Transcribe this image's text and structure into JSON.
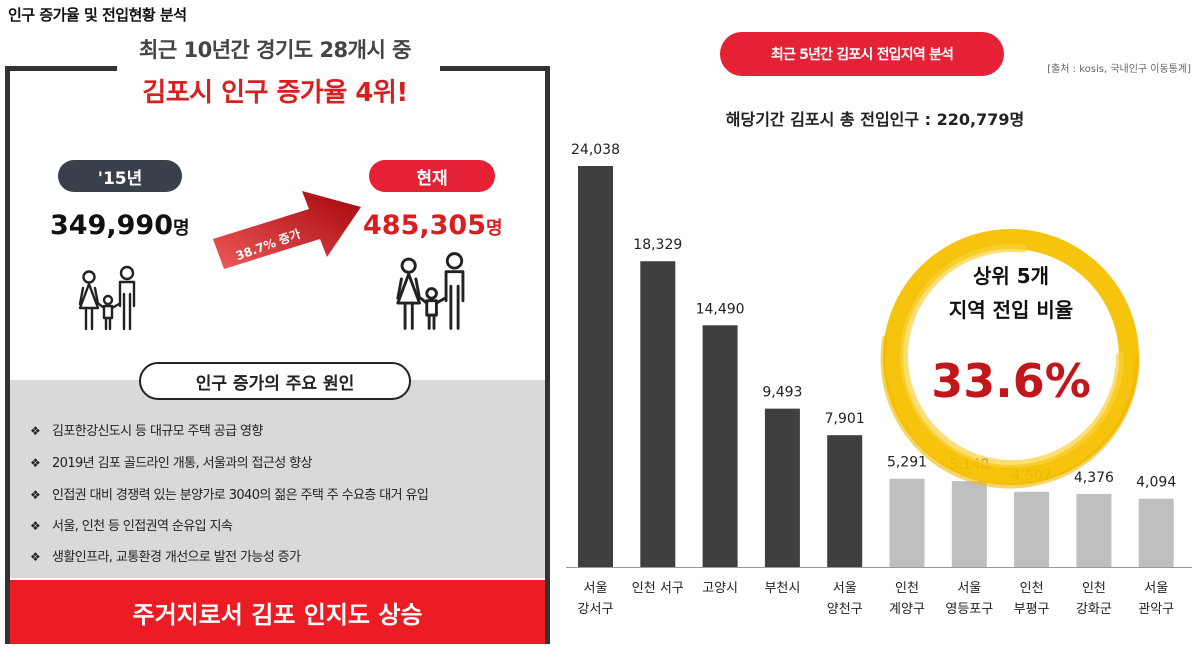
{
  "page_label": "인구 증가율 및 전입현황 분석",
  "left": {
    "subtitle": "최근 10년간 경기도 28개시 중",
    "headline": "김포시 인구 증가율 4위!",
    "past": {
      "label": "'15년",
      "value": "349,990",
      "unit": "명"
    },
    "present": {
      "label": "현재",
      "value": "485,305",
      "unit": "명"
    },
    "growth_label": "38.7% 증가",
    "reasons_title": "인구 증가의 주요 원인",
    "bullet": "❖",
    "reasons": [
      "김포한강신도시 등 대규모 주택 공급 영향",
      "2019년 김포 골드라인 개통, 서울과의 접근성 향상",
      "인접권 대비 경쟁력 있는 분양가로 3040의 젊은 주택 주 수요층 대거 유입",
      "서울, 인천 등 인접권역 순유입 지속",
      "생활인프라, 교통환경 개선으로 발전 가능성 증가"
    ],
    "banner": "주거지로서 김포 인지도 상승"
  },
  "right": {
    "title": "최근 5년간 김포시 전입지역 분석",
    "source": "[출처 : kosis, 국내인구 이동통계]",
    "total": "해당기간 김포시 총 전입인구 : 220,779명",
    "ring_line1": "상위 5개",
    "ring_line2": "지역 전입 비율",
    "ring_value": "33.6%"
  },
  "colors": {
    "accent_red": "#e52136",
    "headline_red": "#d81e1e",
    "dark": "#3a404a",
    "bar_top": "#3f3f3f",
    "bar_rest": "#bfbfbf",
    "ring": "#f5c000"
  },
  "chart_data": {
    "type": "bar",
    "title": "최근 5년간 김포시 전입지역 분석",
    "categories": [
      [
        "서울",
        "강서구"
      ],
      [
        "인천 서구"
      ],
      [
        "고양시"
      ],
      [
        "부천시"
      ],
      [
        "서울",
        "양천구"
      ],
      [
        "인천",
        "계양구"
      ],
      [
        "서울",
        "영등포구"
      ],
      [
        "인천",
        "부평구"
      ],
      [
        "인천",
        "강화군"
      ],
      [
        "서울",
        "관악구"
      ]
    ],
    "values": [
      24038,
      18329,
      14490,
      9493,
      7901,
      5291,
      5148,
      4507,
      4376,
      4094
    ],
    "value_labels": [
      "24,038",
      "18,329",
      "14,490",
      "9,493",
      "7,901",
      "5,291",
      "5,148",
      "4,507",
      "4,376",
      "4,094"
    ],
    "highlight_top": 5,
    "xlabel": "",
    "ylabel": "",
    "ylim": [
      0,
      24038
    ],
    "grid": false,
    "legend": "none"
  }
}
